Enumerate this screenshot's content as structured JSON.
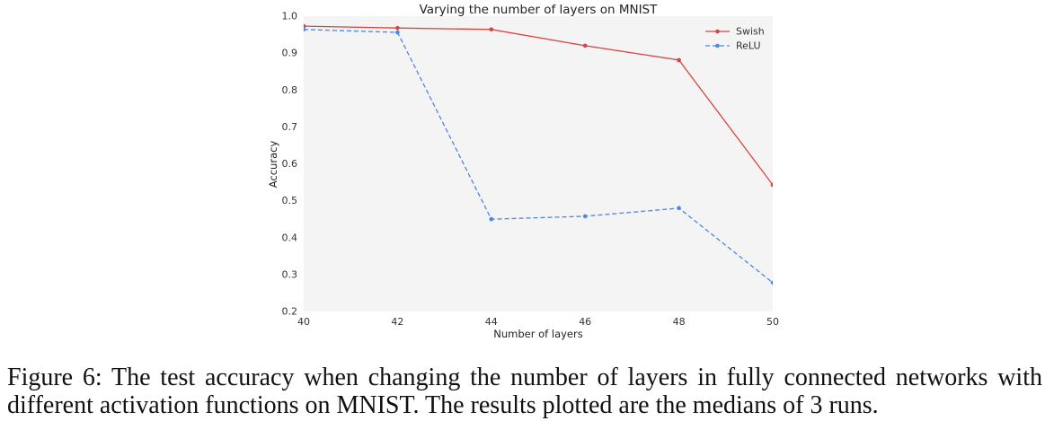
{
  "colors": {
    "plot_background": "#f4f4f4",
    "swish": "#d9433f",
    "relu": "#4a88e4"
  },
  "chart_data": {
    "type": "line",
    "title": "Varying the number of layers on MNIST",
    "xlabel": "Number of layers",
    "ylabel": "Accuracy",
    "x": [
      40,
      42,
      44,
      46,
      48,
      50
    ],
    "xlim": [
      40,
      50
    ],
    "ylim": [
      0.2,
      1.0
    ],
    "xticks": [
      40,
      42,
      44,
      46,
      48,
      50
    ],
    "xtick_labels": [
      "40",
      "42",
      "44",
      "46",
      "48",
      "50"
    ],
    "yticks": [
      0.2,
      0.3,
      0.4,
      0.5,
      0.6,
      0.7,
      0.8,
      0.9,
      1.0
    ],
    "ytick_labels": [
      "0.2",
      "0.3",
      "0.4",
      "0.5",
      "0.6",
      "0.7",
      "0.8",
      "0.9",
      "1.0"
    ],
    "grid": false,
    "legend": {
      "placement": "top-right"
    },
    "series": [
      {
        "name": "Swish",
        "values": [
          0.973,
          0.968,
          0.964,
          0.92,
          0.881,
          0.543
        ],
        "dashed": false,
        "markers": true,
        "color": "#d9433f"
      },
      {
        "name": "ReLU",
        "values": [
          0.964,
          0.956,
          0.45,
          0.458,
          0.48,
          0.278
        ],
        "dashed": true,
        "markers": true,
        "color": "#4a88e4"
      }
    ]
  },
  "figure": {
    "label": "Figure 6:",
    "caption": "The test accuracy when changing the number of layers in fully connected networks with different activation functions on MNIST. The results plotted are the medians of 3 runs."
  }
}
